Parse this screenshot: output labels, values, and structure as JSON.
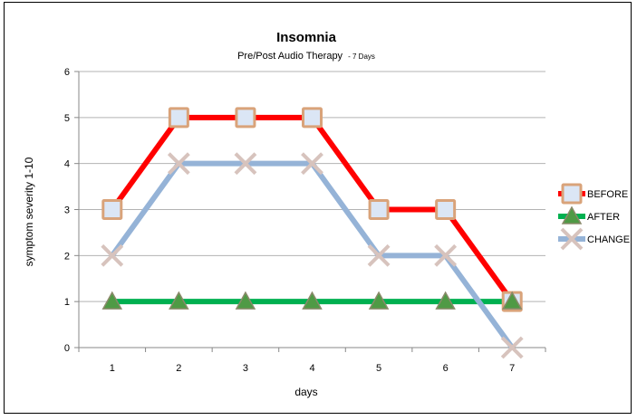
{
  "chart_data": {
    "type": "line",
    "title": "Insomnia",
    "subtitle": "Pre/Post Audio Therapy",
    "subtitle_note": "- 7 Days",
    "xlabel": "days",
    "ylabel": "symptom  severity 1-10",
    "categories": [
      "1",
      "2",
      "3",
      "4",
      "5",
      "6",
      "7"
    ],
    "ylim": [
      0,
      6
    ],
    "yticks": [
      0,
      1,
      2,
      3,
      4,
      5,
      6
    ],
    "grid": true,
    "legend_position": "right",
    "series": [
      {
        "name": "BEFORE",
        "values": [
          3,
          5,
          5,
          5,
          3,
          3,
          1
        ],
        "color": "#ff0000",
        "marker": "square"
      },
      {
        "name": "AFTER",
        "values": [
          1,
          1,
          1,
          1,
          1,
          1,
          1
        ],
        "color": "#00b050",
        "marker": "triangle"
      },
      {
        "name": "CHANGE",
        "values": [
          2,
          4,
          4,
          4,
          2,
          2,
          0
        ],
        "color": "#95b3d7",
        "marker": "x"
      }
    ]
  }
}
